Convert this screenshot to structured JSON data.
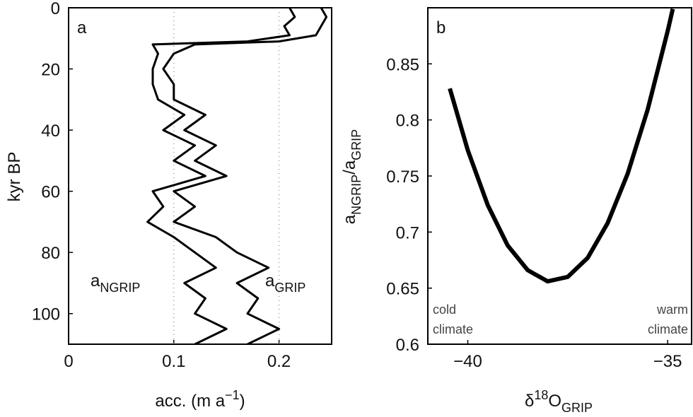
{
  "chart_data": [
    {
      "type": "line",
      "panel_label": "a",
      "xlabel": [
        "acc. (m a",
        "−1",
        ")"
      ],
      "ylabel": "kyr BP",
      "y": [
        0,
        3,
        6,
        9,
        11,
        12,
        15,
        20,
        25,
        30,
        35,
        40,
        45,
        50,
        55,
        60,
        65,
        70,
        75,
        80,
        85,
        90,
        95,
        100,
        105,
        110
      ],
      "series": [
        {
          "name": [
            "a",
            "NGRIP"
          ],
          "color": "#000000",
          "values": [
            0.21,
            0.215,
            0.205,
            0.21,
            0.17,
            0.08,
            0.085,
            0.08,
            0.08,
            0.085,
            0.11,
            0.09,
            0.12,
            0.1,
            0.13,
            0.08,
            0.09,
            0.075,
            0.1,
            0.12,
            0.14,
            0.11,
            0.13,
            0.12,
            0.15,
            0.12
          ]
        },
        {
          "name": [
            "a",
            "GRIP"
          ],
          "color": "#000000",
          "values": [
            0.24,
            0.245,
            0.24,
            0.235,
            0.2,
            0.12,
            0.1,
            0.09,
            0.1,
            0.1,
            0.13,
            0.11,
            0.14,
            0.12,
            0.15,
            0.1,
            0.12,
            0.1,
            0.14,
            0.16,
            0.19,
            0.16,
            0.18,
            0.17,
            0.2,
            0.17
          ]
        }
      ],
      "xlim": [
        0,
        0.25
      ],
      "xticks": [
        0,
        0.1,
        0.2
      ],
      "ylim": [
        0,
        110
      ],
      "yticks": [
        0,
        20,
        40,
        60,
        80,
        100
      ],
      "y_reversed": true,
      "grid": true
    },
    {
      "type": "line",
      "panel_label": "b",
      "xlabel": [
        "δ",
        "18",
        "O",
        "GRIP"
      ],
      "ylabel": [
        "a",
        "NGRIP",
        "/a",
        "GRIP"
      ],
      "annotations": [
        [
          "cold",
          "climate"
        ],
        [
          "warm",
          "climate"
        ]
      ],
      "x": [
        -40.45,
        -40,
        -39.5,
        -39,
        -38.5,
        -38,
        -37.5,
        -37,
        -36.5,
        -36,
        -35.5,
        -35,
        -34.87
      ],
      "series": [
        {
          "color": "#000000",
          "values": [
            0.828,
            0.773,
            0.724,
            0.688,
            0.666,
            0.656,
            0.66,
            0.677,
            0.708,
            0.752,
            0.809,
            0.879,
            0.899
          ]
        }
      ],
      "xlim": [
        -41,
        -34.4
      ],
      "xticks": [
        {
          "value": -40,
          "label": "−40"
        },
        {
          "value": -35,
          "label": "−35"
        }
      ],
      "ylim": [
        0.6,
        0.9
      ],
      "yticks": [
        0.6,
        0.65,
        0.7,
        0.75,
        0.8,
        0.85
      ],
      "y_reversed": false,
      "grid": false
    }
  ]
}
